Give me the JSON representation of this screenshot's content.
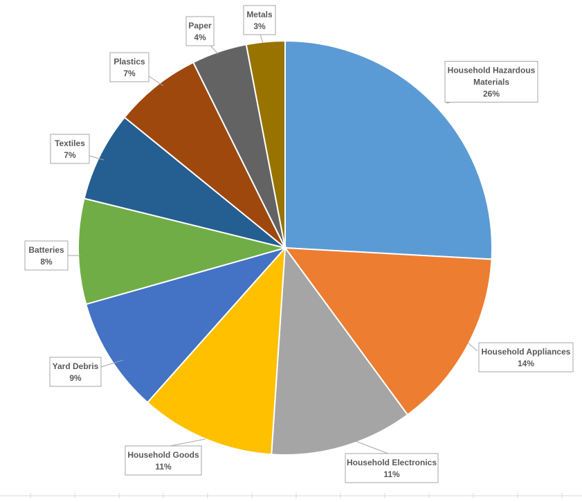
{
  "chart_data": {
    "type": "pie",
    "title": "",
    "start_angle_deg": 0,
    "direction": "clockwise",
    "slices": [
      {
        "label_lines": [
          "Household Hazardous",
          "Materials"
        ],
        "pct_label": "26%",
        "value": 25.8,
        "color": "#5B9BD5"
      },
      {
        "label_lines": [
          "Household Appliances"
        ],
        "pct_label": "14%",
        "value": 14.0,
        "color": "#ED7D31"
      },
      {
        "label_lines": [
          "Household Electronics"
        ],
        "pct_label": "11%",
        "value": 11.1,
        "color": "#A5A5A5"
      },
      {
        "label_lines": [
          "Household Goods"
        ],
        "pct_label": "11%",
        "value": 10.5,
        "color": "#FFC000"
      },
      {
        "label_lines": [
          "Yard Debris"
        ],
        "pct_label": "9%",
        "value": 9.0,
        "color": "#4472C4"
      },
      {
        "label_lines": [
          "Batteries"
        ],
        "pct_label": "8%",
        "value": 8.2,
        "color": "#70AD47"
      },
      {
        "label_lines": [
          "Textiles"
        ],
        "pct_label": "7%",
        "value": 7.0,
        "color": "#255E91"
      },
      {
        "label_lines": [
          "Plastics"
        ],
        "pct_label": "7%",
        "value": 6.8,
        "color": "#9E480E"
      },
      {
        "label_lines": [
          "Paper"
        ],
        "pct_label": "4%",
        "value": 4.3,
        "color": "#636363"
      },
      {
        "label_lines": [
          "Metals"
        ],
        "pct_label": "3%",
        "value": 3.0,
        "color": "#997300"
      }
    ]
  }
}
